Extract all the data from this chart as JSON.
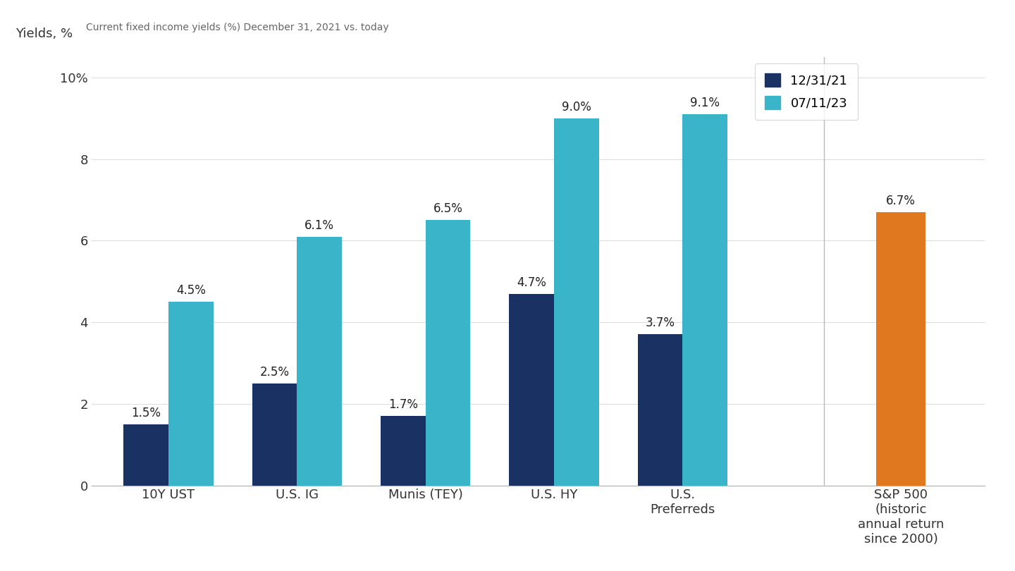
{
  "title": "Current fixed income yields (%) December 31, 2021 vs. today",
  "ylabel": "Yields, %",
  "categories": [
    "10Y UST",
    "U.S. IG",
    "Munis (TEY)",
    "U.S. HY",
    "U.S.\nPreferreds"
  ],
  "sp500_label": "S&P 500\n(historic\nannual return\nsince 2000)",
  "series1_label": "12/31/21",
  "series2_label": "07/11/23",
  "series1_values": [
    1.5,
    2.5,
    1.7,
    4.7,
    3.7
  ],
  "series2_values": [
    4.5,
    6.1,
    6.5,
    9.0,
    9.1
  ],
  "sp500_value": 6.7,
  "series1_color": "#1a3263",
  "series2_color": "#3ab4c8",
  "sp500_color": "#e07820",
  "ylim": [
    0,
    10.5
  ],
  "ytick_values": [
    0,
    2,
    4,
    6,
    8,
    10
  ],
  "ytick_labels": [
    "0",
    "2",
    "4",
    "6",
    "8",
    "10%"
  ],
  "background_color": "#ffffff",
  "bar_width": 0.35,
  "annotation_fontsize": 12,
  "title_fontsize": 10,
  "axis_fontsize": 13,
  "legend_fontsize": 13,
  "ylabel_fontsize": 13
}
